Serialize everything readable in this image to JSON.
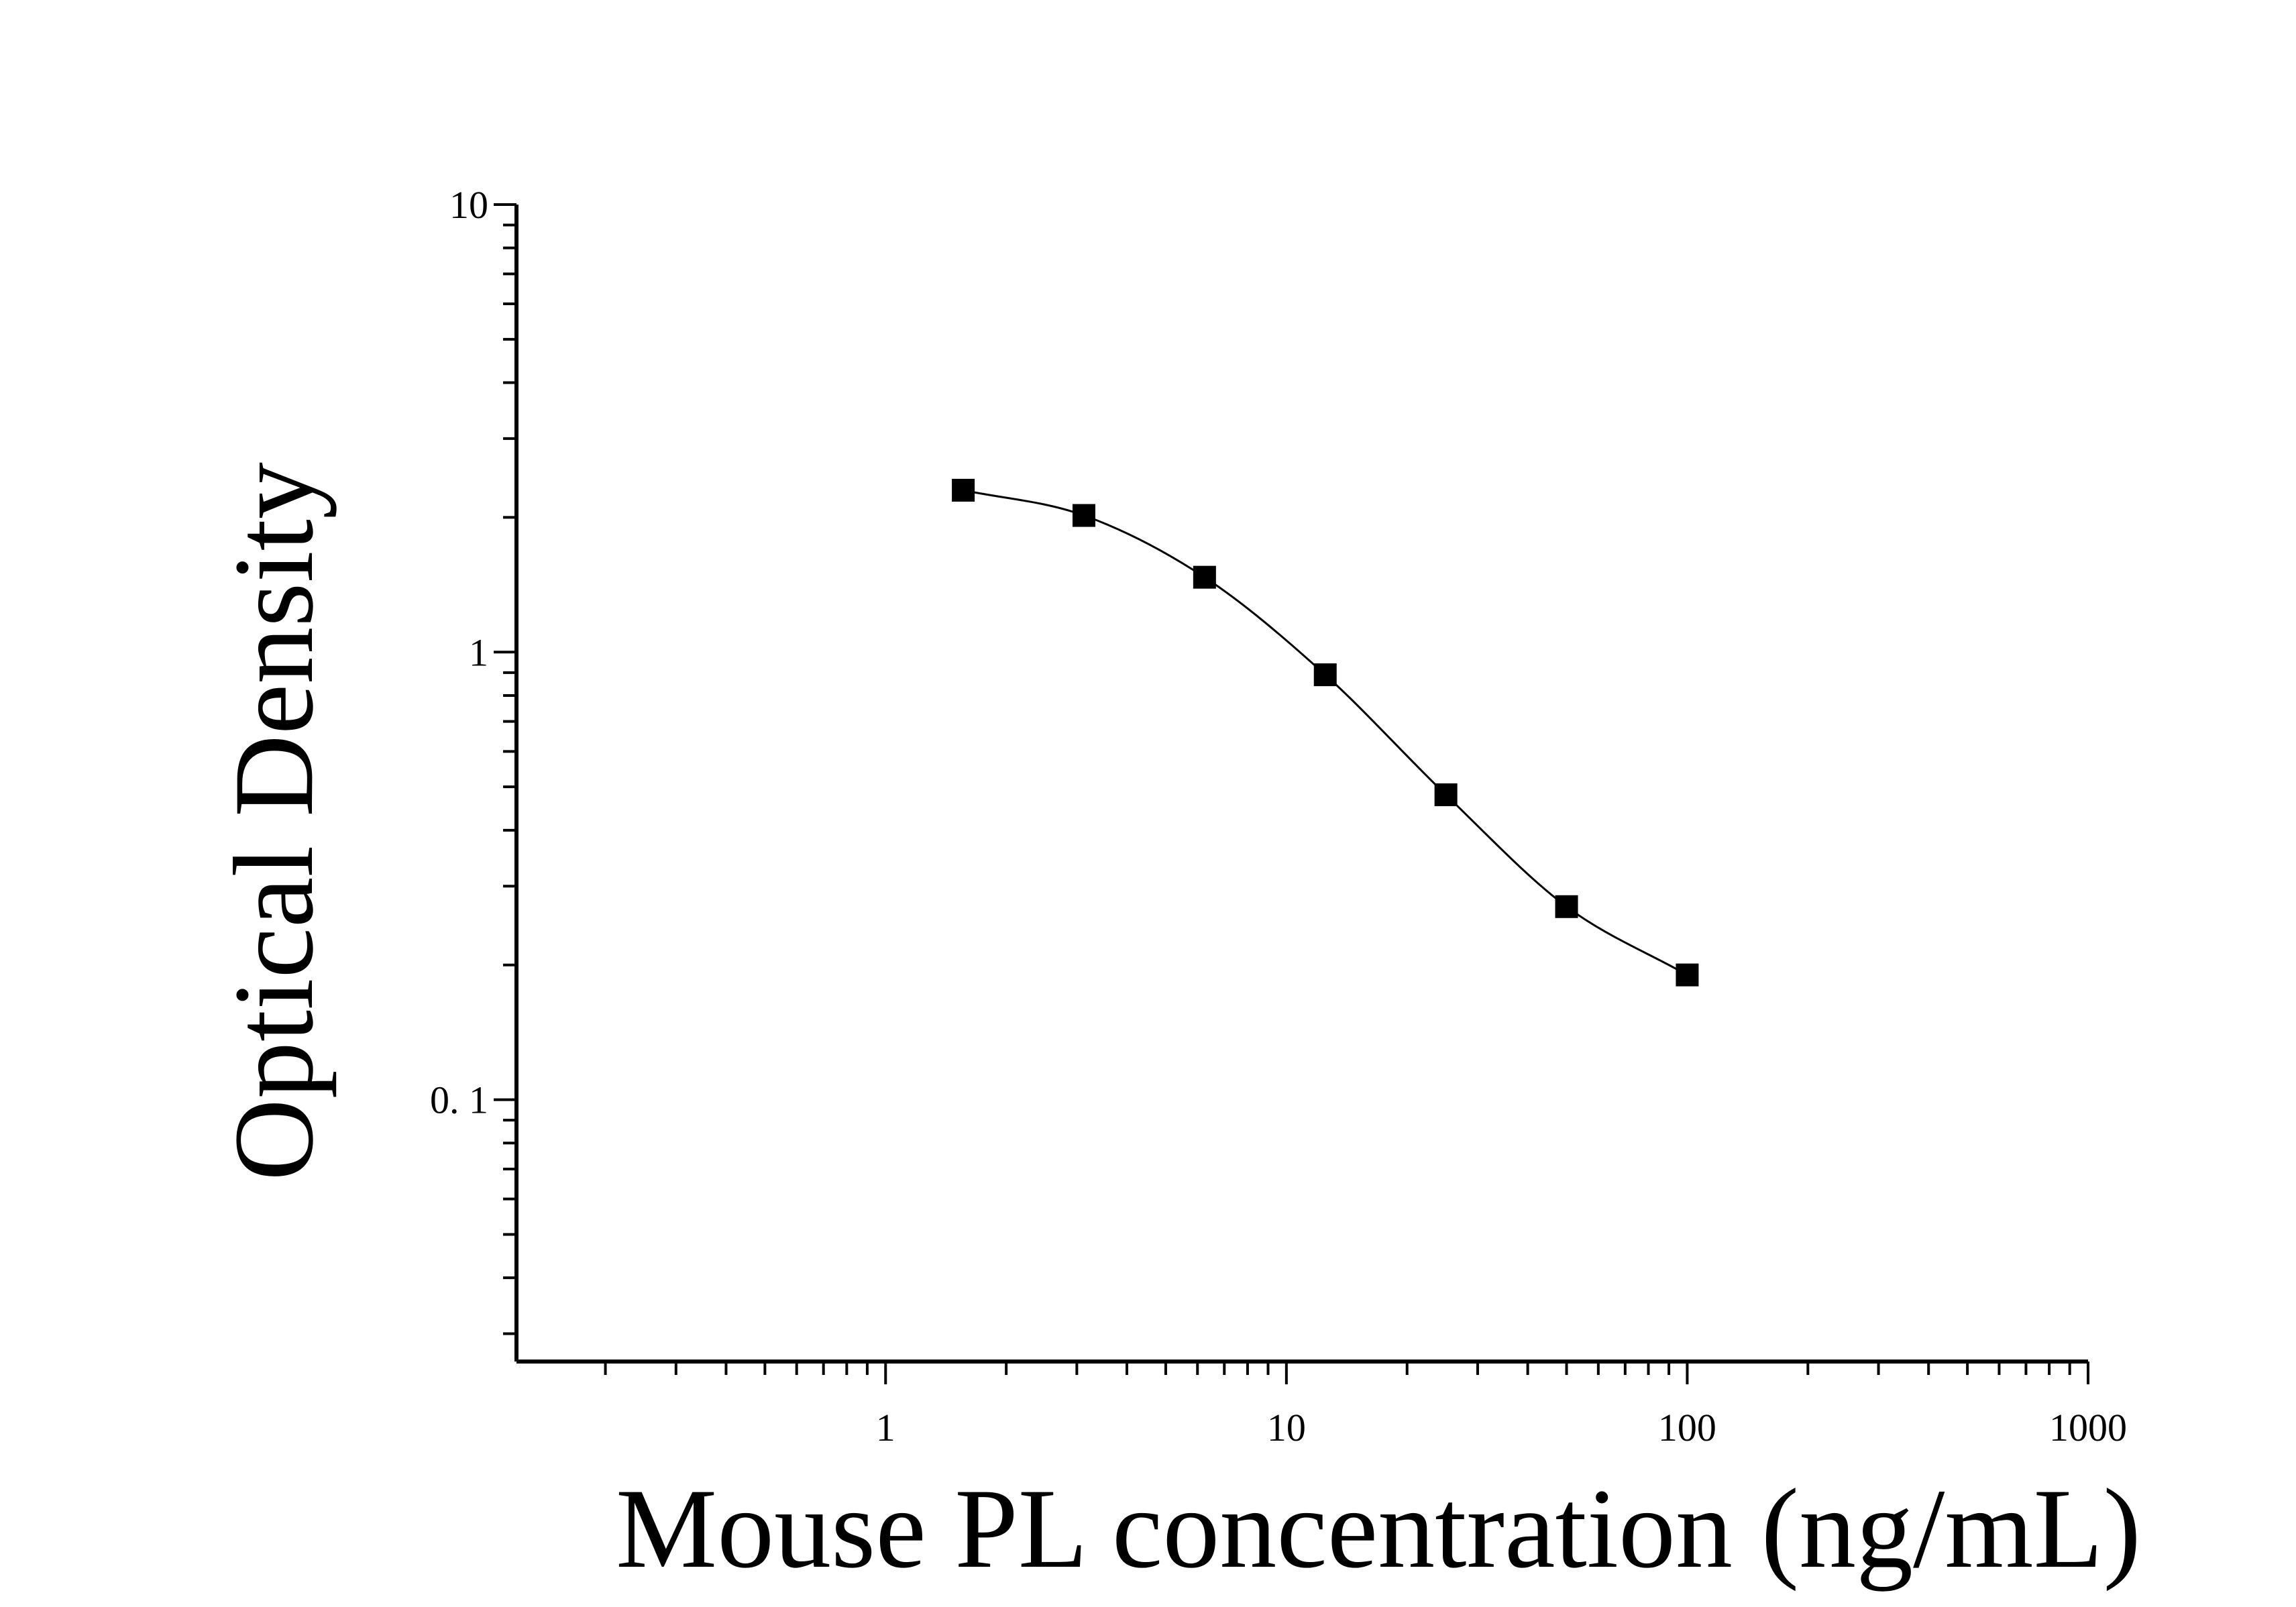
{
  "chart_data": {
    "type": "scatter",
    "title": "",
    "xlabel": "Mouse PL concentration (ng/mL)",
    "ylabel": "Optical Density",
    "x_scale": "log",
    "y_scale": "log",
    "xlim": [
      0.12,
      1000
    ],
    "ylim": [
      0.026,
      10
    ],
    "x_ticks": [
      {
        "value": 1,
        "label": "1"
      },
      {
        "value": 10,
        "label": "10"
      },
      {
        "value": 100,
        "label": "100"
      },
      {
        "value": 1000,
        "label": "1000"
      }
    ],
    "y_ticks": [
      {
        "value": 0.1,
        "label": "0. 1"
      },
      {
        "value": 1,
        "label": "1"
      },
      {
        "value": 10,
        "label": "10"
      }
    ],
    "grid": false,
    "legend": "none",
    "marker": "square",
    "color": "#000000",
    "fit_line": "4-parameter logistic curve",
    "series": [
      {
        "x": [
          1.5625,
          3.125,
          6.25,
          12.5,
          25,
          50,
          100
        ],
        "y": [
          2.3,
          2.02,
          1.47,
          0.89,
          0.48,
          0.27,
          0.19
        ]
      }
    ]
  }
}
